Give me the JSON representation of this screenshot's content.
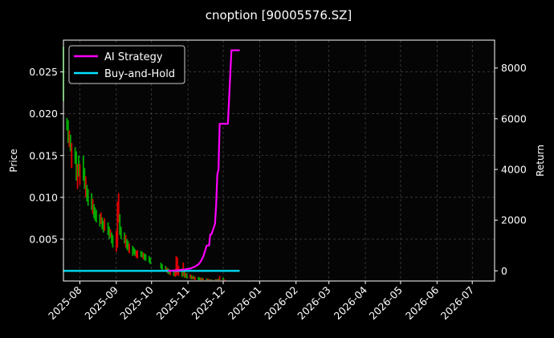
{
  "chart_data": {
    "type": "line",
    "title": "cnoption [90005576.SZ]",
    "ylabel": "Price",
    "y2label": "Return",
    "grid": true,
    "legend_position": "top-left",
    "colors": {
      "background": "#000000",
      "up_bar": "#00aa00",
      "down_bar": "#dd0000",
      "ai_strategy": "#ff00ff",
      "buy_and_hold": "#00e5ff",
      "grid": "#555555"
    },
    "x_range": [
      "2025-07-18",
      "2026-07-20"
    ],
    "x_ticks": [
      "2025-08",
      "2025-09",
      "2025-10",
      "2025-11",
      "2025-12",
      "2026-01",
      "2026-02",
      "2026-03",
      "2026-04",
      "2026-05",
      "2026-06",
      "2026-07"
    ],
    "x_tick_dates": [
      "2025-08-01",
      "2025-09-01",
      "2025-10-01",
      "2025-11-01",
      "2025-12-01",
      "2026-01-01",
      "2026-02-01",
      "2026-03-01",
      "2026-04-01",
      "2026-05-01",
      "2026-06-01",
      "2026-07-01"
    ],
    "y_left": {
      "range": [
        0,
        0.0288
      ],
      "ticks": [
        0.005,
        0.01,
        0.015,
        0.02,
        0.025
      ],
      "tick_labels": [
        "0.005",
        "0.010",
        "0.015",
        "0.020",
        "0.025"
      ]
    },
    "y_right": {
      "range": [
        -400,
        9100
      ],
      "ticks": [
        0,
        2000,
        4000,
        6000,
        8000
      ],
      "tick_labels": [
        "0",
        "2000",
        "4000",
        "6000",
        "8000"
      ]
    },
    "price_bars": [
      {
        "date": "2025-07-18",
        "low": 0.0215,
        "high": 0.028,
        "dir": "up"
      },
      {
        "date": "2025-07-21",
        "low": 0.018,
        "high": 0.0195,
        "dir": "up"
      },
      {
        "date": "2025-07-22",
        "low": 0.0165,
        "high": 0.0192,
        "dir": "up"
      },
      {
        "date": "2025-07-23",
        "low": 0.016,
        "high": 0.018,
        "dir": "down"
      },
      {
        "date": "2025-07-24",
        "low": 0.0155,
        "high": 0.0175,
        "dir": "up"
      },
      {
        "date": "2025-07-25",
        "low": 0.0135,
        "high": 0.0165,
        "dir": "down"
      },
      {
        "date": "2025-07-28",
        "low": 0.014,
        "high": 0.016,
        "dir": "up"
      },
      {
        "date": "2025-07-29",
        "low": 0.012,
        "high": 0.0155,
        "dir": "up"
      },
      {
        "date": "2025-07-30",
        "low": 0.011,
        "high": 0.014,
        "dir": "down"
      },
      {
        "date": "2025-07-31",
        "low": 0.0125,
        "high": 0.015,
        "dir": "up"
      },
      {
        "date": "2025-08-01",
        "low": 0.0115,
        "high": 0.014,
        "dir": "down"
      },
      {
        "date": "2025-08-04",
        "low": 0.012,
        "high": 0.015,
        "dir": "up"
      },
      {
        "date": "2025-08-05",
        "low": 0.011,
        "high": 0.0135,
        "dir": "up"
      },
      {
        "date": "2025-08-06",
        "low": 0.01,
        "high": 0.0125,
        "dir": "down"
      },
      {
        "date": "2025-08-07",
        "low": 0.0095,
        "high": 0.0115,
        "dir": "up"
      },
      {
        "date": "2025-08-08",
        "low": 0.009,
        "high": 0.011,
        "dir": "up"
      },
      {
        "date": "2025-08-11",
        "low": 0.0085,
        "high": 0.0105,
        "dir": "up"
      },
      {
        "date": "2025-08-12",
        "low": 0.008,
        "high": 0.0098,
        "dir": "down"
      },
      {
        "date": "2025-08-13",
        "low": 0.0075,
        "high": 0.0092,
        "dir": "up"
      },
      {
        "date": "2025-08-14",
        "low": 0.0072,
        "high": 0.0088,
        "dir": "up"
      },
      {
        "date": "2025-08-15",
        "low": 0.007,
        "high": 0.0085,
        "dir": "up"
      },
      {
        "date": "2025-08-18",
        "low": 0.0065,
        "high": 0.008,
        "dir": "up"
      },
      {
        "date": "2025-08-19",
        "low": 0.0068,
        "high": 0.0082,
        "dir": "down"
      },
      {
        "date": "2025-08-20",
        "low": 0.0062,
        "high": 0.0076,
        "dir": "up"
      },
      {
        "date": "2025-08-21",
        "low": 0.0058,
        "high": 0.0072,
        "dir": "up"
      },
      {
        "date": "2025-08-22",
        "low": 0.006,
        "high": 0.0075,
        "dir": "down"
      },
      {
        "date": "2025-08-25",
        "low": 0.0055,
        "high": 0.007,
        "dir": "up"
      },
      {
        "date": "2025-08-26",
        "low": 0.005,
        "high": 0.0065,
        "dir": "up"
      },
      {
        "date": "2025-08-27",
        "low": 0.0052,
        "high": 0.0062,
        "dir": "down"
      },
      {
        "date": "2025-08-28",
        "low": 0.0045,
        "high": 0.0058,
        "dir": "up"
      },
      {
        "date": "2025-08-29",
        "low": 0.004,
        "high": 0.0055,
        "dir": "up"
      },
      {
        "date": "2025-09-01",
        "low": 0.0035,
        "high": 0.006,
        "dir": "down"
      },
      {
        "date": "2025-09-02",
        "low": 0.004,
        "high": 0.0095,
        "dir": "down"
      },
      {
        "date": "2025-09-03",
        "low": 0.007,
        "high": 0.0105,
        "dir": "down"
      },
      {
        "date": "2025-09-04",
        "low": 0.0055,
        "high": 0.008,
        "dir": "up"
      },
      {
        "date": "2025-09-05",
        "low": 0.005,
        "high": 0.0065,
        "dir": "up"
      },
      {
        "date": "2025-09-08",
        "low": 0.0045,
        "high": 0.0058,
        "dir": "up"
      },
      {
        "date": "2025-09-09",
        "low": 0.004,
        "high": 0.0055,
        "dir": "down"
      },
      {
        "date": "2025-09-10",
        "low": 0.0038,
        "high": 0.005,
        "dir": "up"
      },
      {
        "date": "2025-09-11",
        "low": 0.0036,
        "high": 0.0048,
        "dir": "up"
      },
      {
        "date": "2025-09-12",
        "low": 0.0033,
        "high": 0.0045,
        "dir": "down"
      },
      {
        "date": "2025-09-15",
        "low": 0.003,
        "high": 0.0042,
        "dir": "up"
      },
      {
        "date": "2025-09-16",
        "low": 0.0032,
        "high": 0.004,
        "dir": "up"
      },
      {
        "date": "2025-09-17",
        "low": 0.003,
        "high": 0.0038,
        "dir": "up"
      },
      {
        "date": "2025-09-18",
        "low": 0.0028,
        "high": 0.0036,
        "dir": "down"
      },
      {
        "date": "2025-09-19",
        "low": 0.0027,
        "high": 0.0037,
        "dir": "down"
      },
      {
        "date": "2025-09-22",
        "low": 0.0029,
        "high": 0.0036,
        "dir": "up"
      },
      {
        "date": "2025-09-23",
        "low": 0.0028,
        "high": 0.0035,
        "dir": "up"
      },
      {
        "date": "2025-09-24",
        "low": 0.0026,
        "high": 0.0034,
        "dir": "down"
      },
      {
        "date": "2025-09-25",
        "low": 0.0025,
        "high": 0.0033,
        "dir": "up"
      },
      {
        "date": "2025-09-26",
        "low": 0.0024,
        "high": 0.0032,
        "dir": "up"
      },
      {
        "date": "2025-09-29",
        "low": 0.0022,
        "high": 0.003,
        "dir": "up"
      },
      {
        "date": "2025-09-30",
        "low": 0.002,
        "high": 0.0028,
        "dir": "up"
      },
      {
        "date": "2025-10-09",
        "low": 0.0015,
        "high": 0.0022,
        "dir": "up"
      },
      {
        "date": "2025-10-10",
        "low": 0.0013,
        "high": 0.002,
        "dir": "up"
      },
      {
        "date": "2025-10-13",
        "low": 0.0012,
        "high": 0.0018,
        "dir": "up"
      },
      {
        "date": "2025-10-14",
        "low": 0.001,
        "high": 0.0016,
        "dir": "down"
      },
      {
        "date": "2025-10-15",
        "low": 0.0009,
        "high": 0.0015,
        "dir": "up"
      },
      {
        "date": "2025-10-16",
        "low": 0.0008,
        "high": 0.0014,
        "dir": "up"
      },
      {
        "date": "2025-10-17",
        "low": 0.0007,
        "high": 0.0013,
        "dir": "down"
      },
      {
        "date": "2025-10-20",
        "low": 0.0006,
        "high": 0.0012,
        "dir": "up"
      },
      {
        "date": "2025-10-21",
        "low": 0.0005,
        "high": 0.0014,
        "dir": "down"
      },
      {
        "date": "2025-10-22",
        "low": 0.0006,
        "high": 0.003,
        "dir": "down"
      },
      {
        "date": "2025-10-23",
        "low": 0.0008,
        "high": 0.0028,
        "dir": "down"
      },
      {
        "date": "2025-10-24",
        "low": 0.0006,
        "high": 0.0018,
        "dir": "down"
      },
      {
        "date": "2025-10-27",
        "low": 0.0005,
        "high": 0.0015,
        "dir": "up"
      },
      {
        "date": "2025-10-28",
        "low": 0.0006,
        "high": 0.0022,
        "dir": "down"
      },
      {
        "date": "2025-10-29",
        "low": 0.0004,
        "high": 0.0012,
        "dir": "up"
      },
      {
        "date": "2025-10-30",
        "low": 0.0004,
        "high": 0.001,
        "dir": "down"
      },
      {
        "date": "2025-10-31",
        "low": 0.0003,
        "high": 0.0009,
        "dir": "up"
      },
      {
        "date": "2025-11-03",
        "low": 0.0003,
        "high": 0.0008,
        "dir": "down"
      },
      {
        "date": "2025-11-04",
        "low": 0.0002,
        "high": 0.0007,
        "dir": "up"
      },
      {
        "date": "2025-11-05",
        "low": 0.0002,
        "high": 0.0006,
        "dir": "down"
      },
      {
        "date": "2025-11-06",
        "low": 0.0002,
        "high": 0.0006,
        "dir": "up"
      },
      {
        "date": "2025-11-07",
        "low": 0.0001,
        "high": 0.0005,
        "dir": "down"
      },
      {
        "date": "2025-11-10",
        "low": 0.0001,
        "high": 0.0005,
        "dir": "up"
      },
      {
        "date": "2025-11-11",
        "low": 0.0001,
        "high": 0.0004,
        "dir": "up"
      },
      {
        "date": "2025-11-12",
        "low": 0.0001,
        "high": 0.0004,
        "dir": "down"
      },
      {
        "date": "2025-11-13",
        "low": 0.0001,
        "high": 0.0004,
        "dir": "up"
      },
      {
        "date": "2025-11-14",
        "low": 0.0001,
        "high": 0.0003,
        "dir": "down"
      },
      {
        "date": "2025-11-17",
        "low": 0.0001,
        "high": 0.0003,
        "dir": "up"
      },
      {
        "date": "2025-11-18",
        "low": 0.0001,
        "high": 0.0003,
        "dir": "down"
      },
      {
        "date": "2025-11-19",
        "low": 0.0001,
        "high": 0.0002,
        "dir": "up"
      },
      {
        "date": "2025-11-20",
        "low": 0.0001,
        "high": 0.0002,
        "dir": "down"
      },
      {
        "date": "2025-11-21",
        "low": 0.0001,
        "high": 0.0002,
        "dir": "up"
      },
      {
        "date": "2025-11-24",
        "low": 0.0001,
        "high": 0.0002,
        "dir": "down"
      },
      {
        "date": "2025-11-25",
        "low": 0.0001,
        "high": 0.0002,
        "dir": "up"
      },
      {
        "date": "2025-11-26",
        "low": 0.0001,
        "high": 0.0002,
        "dir": "down"
      },
      {
        "date": "2025-11-27",
        "low": 0.0001,
        "high": 0.0003,
        "dir": "up"
      },
      {
        "date": "2025-11-28",
        "low": 0.0001,
        "high": 0.0006,
        "dir": "down"
      },
      {
        "date": "2025-12-01",
        "low": 0.0001,
        "high": 0.0004,
        "dir": "up"
      },
      {
        "date": "2025-12-02",
        "low": 0.0,
        "high": 0.0002,
        "dir": "down"
      }
    ],
    "series": [
      {
        "name": "AI Strategy",
        "color": "#ff00ff",
        "points": [
          [
            "2025-10-15",
            0
          ],
          [
            "2025-10-22",
            20
          ],
          [
            "2025-10-28",
            50
          ],
          [
            "2025-11-03",
            90
          ],
          [
            "2025-11-07",
            170
          ],
          [
            "2025-11-10",
            260
          ],
          [
            "2025-11-12",
            380
          ],
          [
            "2025-11-14",
            560
          ],
          [
            "2025-11-17",
            1000
          ],
          [
            "2025-11-19",
            1000
          ],
          [
            "2025-11-20",
            1440
          ],
          [
            "2025-11-21",
            1440
          ],
          [
            "2025-11-24",
            1850
          ],
          [
            "2025-11-25",
            2600
          ],
          [
            "2025-11-26",
            3800
          ],
          [
            "2025-11-27",
            4000
          ],
          [
            "2025-11-28",
            5800
          ],
          [
            "2025-12-05",
            5800
          ],
          [
            "2025-12-08",
            8700
          ],
          [
            "2025-12-15",
            8700
          ]
        ]
      },
      {
        "name": "Buy-and-Hold",
        "color": "#00e5ff",
        "points": [
          [
            "2025-07-18",
            0
          ],
          [
            "2025-12-15",
            0
          ]
        ]
      }
    ]
  }
}
